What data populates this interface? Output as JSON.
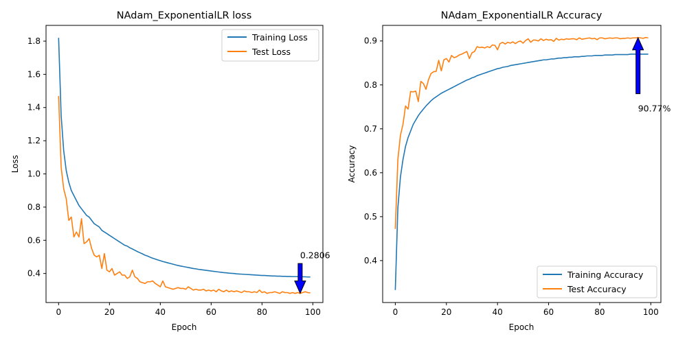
{
  "chart_data": [
    {
      "type": "line",
      "title": "NAdam_ExponentialLR loss",
      "xlabel": "Epoch",
      "ylabel": "Loss",
      "xlim": [
        -4.95,
        103.95
      ],
      "ylim": [
        0.225,
        1.895
      ],
      "xticks": [
        0,
        20,
        40,
        60,
        80,
        100
      ],
      "yticks": [
        0.4,
        0.6,
        0.8,
        1.0,
        1.2,
        1.4,
        1.6,
        1.8
      ],
      "ytick_format": 1,
      "grid": false,
      "legend": "top-right",
      "series": [
        {
          "name": "Training Loss",
          "color": "#1f77b4",
          "values": [
            1.82,
            1.35,
            1.14,
            1.02,
            0.95,
            0.9,
            0.87,
            0.84,
            0.81,
            0.79,
            0.77,
            0.75,
            0.74,
            0.72,
            0.7,
            0.69,
            0.68,
            0.66,
            0.65,
            0.64,
            0.63,
            0.62,
            0.61,
            0.6,
            0.59,
            0.58,
            0.57,
            0.565,
            0.555,
            0.548,
            0.54,
            0.532,
            0.525,
            0.518,
            0.51,
            0.505,
            0.498,
            0.492,
            0.487,
            0.482,
            0.477,
            0.472,
            0.468,
            0.464,
            0.46,
            0.456,
            0.452,
            0.448,
            0.445,
            0.442,
            0.439,
            0.436,
            0.433,
            0.43,
            0.428,
            0.425,
            0.423,
            0.421,
            0.419,
            0.417,
            0.415,
            0.413,
            0.411,
            0.409,
            0.407,
            0.405,
            0.404,
            0.402,
            0.401,
            0.4,
            0.398,
            0.397,
            0.396,
            0.395,
            0.394,
            0.393,
            0.392,
            0.391,
            0.39,
            0.389,
            0.388,
            0.388,
            0.387,
            0.386,
            0.385,
            0.385,
            0.384,
            0.384,
            0.383,
            0.383,
            0.382,
            0.382,
            0.381,
            0.381,
            0.381,
            0.38,
            0.38,
            0.38,
            0.379,
            0.379
          ]
        },
        {
          "name": "Test Loss",
          "color": "#ff7f0e",
          "values": [
            1.47,
            1.04,
            0.91,
            0.85,
            0.72,
            0.74,
            0.62,
            0.65,
            0.62,
            0.73,
            0.58,
            0.59,
            0.61,
            0.55,
            0.51,
            0.5,
            0.51,
            0.43,
            0.52,
            0.42,
            0.41,
            0.43,
            0.39,
            0.4,
            0.41,
            0.39,
            0.39,
            0.37,
            0.38,
            0.42,
            0.38,
            0.37,
            0.35,
            0.345,
            0.34,
            0.35,
            0.35,
            0.355,
            0.34,
            0.33,
            0.32,
            0.355,
            0.32,
            0.315,
            0.31,
            0.305,
            0.31,
            0.315,
            0.31,
            0.31,
            0.305,
            0.32,
            0.31,
            0.3,
            0.305,
            0.3,
            0.3,
            0.305,
            0.295,
            0.3,
            0.295,
            0.3,
            0.29,
            0.305,
            0.295,
            0.29,
            0.3,
            0.29,
            0.295,
            0.29,
            0.295,
            0.29,
            0.285,
            0.295,
            0.29,
            0.29,
            0.285,
            0.29,
            0.285,
            0.3,
            0.285,
            0.29,
            0.28,
            0.285,
            0.285,
            0.29,
            0.285,
            0.28,
            0.29,
            0.285,
            0.285,
            0.28,
            0.285,
            0.28,
            0.285,
            0.2806,
            0.285,
            0.29,
            0.285,
            0.283
          ]
        }
      ],
      "annotation": {
        "text": "0.2806",
        "x": 95,
        "y": 0.2806,
        "text_x": 95,
        "text_y": 0.48,
        "tail_y": 0.46,
        "direction": "down"
      }
    },
    {
      "type": "line",
      "title": "NAdam_ExponentialLR Accuracy",
      "xlabel": "Epoch",
      "ylabel": "Accuracy",
      "xlim": [
        -4.95,
        103.95
      ],
      "ylim": [
        0.3045,
        0.9355
      ],
      "xticks": [
        0,
        20,
        40,
        60,
        80,
        100
      ],
      "yticks": [
        0.4,
        0.5,
        0.6,
        0.7,
        0.8,
        0.9
      ],
      "ytick_format": 1,
      "grid": false,
      "legend": "bottom-right",
      "series": [
        {
          "name": "Training Accuracy",
          "color": "#1f77b4",
          "values": [
            0.333,
            0.52,
            0.59,
            0.63,
            0.66,
            0.68,
            0.695,
            0.71,
            0.72,
            0.73,
            0.738,
            0.745,
            0.752,
            0.758,
            0.764,
            0.769,
            0.773,
            0.777,
            0.781,
            0.784,
            0.787,
            0.79,
            0.793,
            0.796,
            0.799,
            0.802,
            0.805,
            0.808,
            0.811,
            0.813,
            0.816,
            0.818,
            0.821,
            0.823,
            0.825,
            0.827,
            0.829,
            0.831,
            0.833,
            0.835,
            0.837,
            0.838,
            0.84,
            0.841,
            0.842,
            0.844,
            0.845,
            0.846,
            0.847,
            0.848,
            0.849,
            0.85,
            0.851,
            0.852,
            0.853,
            0.854,
            0.855,
            0.856,
            0.857,
            0.857,
            0.858,
            0.859,
            0.859,
            0.86,
            0.861,
            0.861,
            0.862,
            0.862,
            0.863,
            0.863,
            0.864,
            0.864,
            0.864,
            0.865,
            0.865,
            0.866,
            0.866,
            0.866,
            0.867,
            0.867,
            0.867,
            0.867,
            0.868,
            0.868,
            0.868,
            0.868,
            0.869,
            0.869,
            0.869,
            0.869,
            0.869,
            0.869,
            0.87,
            0.87,
            0.87,
            0.87,
            0.87,
            0.87,
            0.87,
            0.87
          ]
        },
        {
          "name": "Test Accuracy",
          "color": "#ff7f0e",
          "values": [
            0.472,
            0.63,
            0.685,
            0.71,
            0.752,
            0.745,
            0.785,
            0.784,
            0.786,
            0.762,
            0.808,
            0.803,
            0.79,
            0.812,
            0.826,
            0.83,
            0.831,
            0.856,
            0.832,
            0.857,
            0.86,
            0.852,
            0.867,
            0.862,
            0.864,
            0.868,
            0.87,
            0.873,
            0.876,
            0.86,
            0.873,
            0.876,
            0.887,
            0.885,
            0.886,
            0.884,
            0.887,
            0.885,
            0.891,
            0.89,
            0.88,
            0.894,
            0.897,
            0.893,
            0.897,
            0.895,
            0.898,
            0.894,
            0.898,
            0.9,
            0.895,
            0.901,
            0.905,
            0.897,
            0.902,
            0.902,
            0.9,
            0.905,
            0.901,
            0.904,
            0.902,
            0.903,
            0.899,
            0.906,
            0.902,
            0.904,
            0.903,
            0.905,
            0.904,
            0.905,
            0.905,
            0.903,
            0.907,
            0.904,
            0.905,
            0.906,
            0.907,
            0.905,
            0.906,
            0.903,
            0.907,
            0.907,
            0.905,
            0.906,
            0.907,
            0.906,
            0.907,
            0.907,
            0.905,
            0.906,
            0.906,
            0.907,
            0.906,
            0.907,
            0.907,
            0.9077,
            0.907,
            0.906,
            0.908,
            0.907
          ]
        }
      ],
      "annotation": {
        "text": "90.77%",
        "x": 95,
        "y": 0.9077,
        "text_x": 95,
        "text_y": 0.755,
        "tail_y": 0.78,
        "direction": "up"
      }
    }
  ]
}
